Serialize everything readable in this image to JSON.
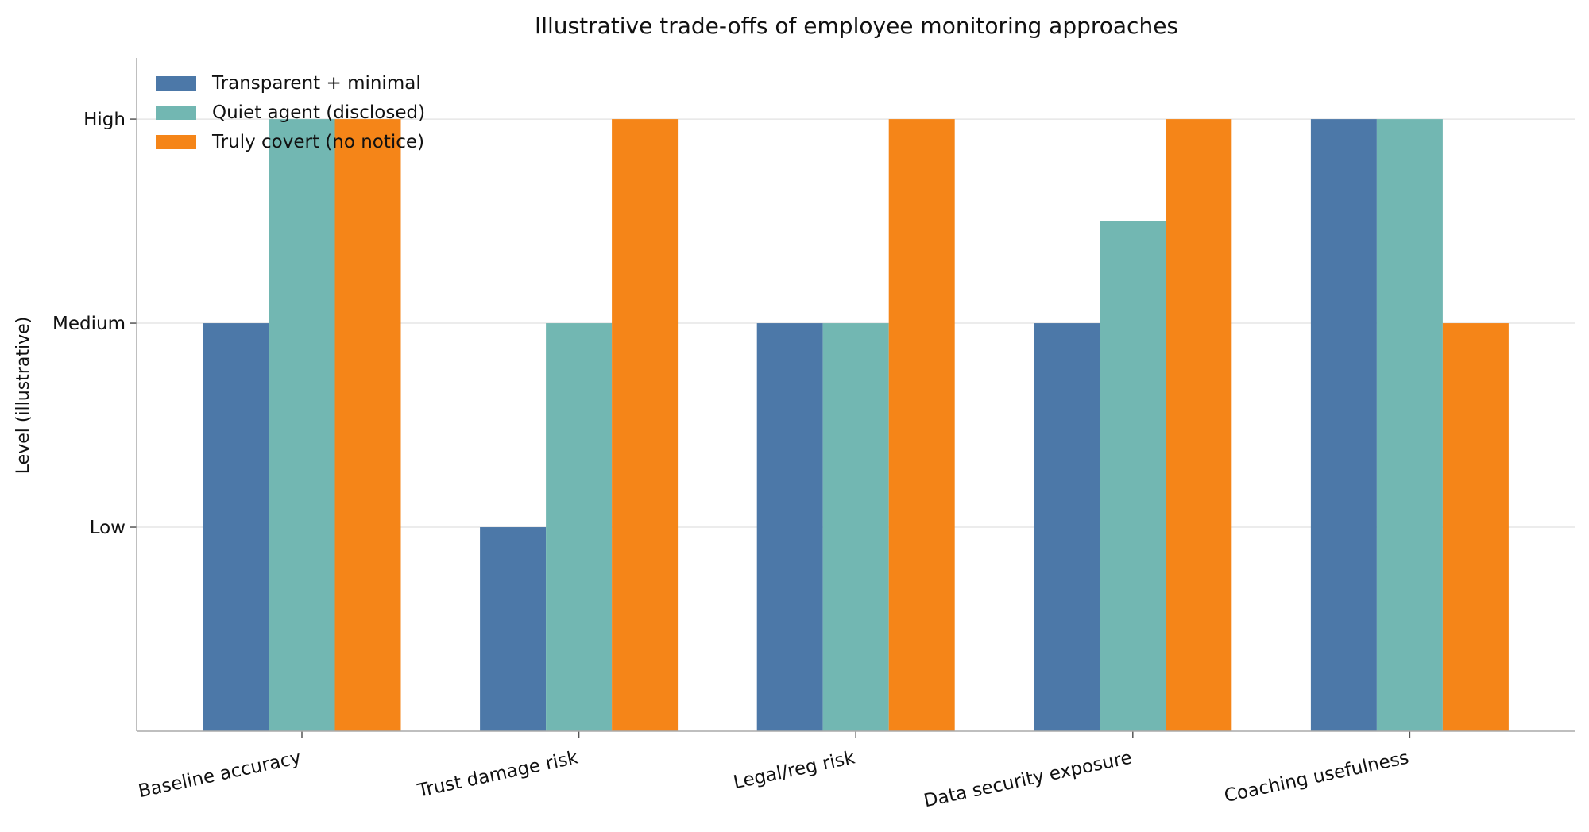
{
  "chart_data": {
    "type": "bar",
    "title": "Illustrative trade-offs of employee monitoring approaches",
    "xlabel": "",
    "ylabel": "Level (illustrative)",
    "categories": [
      "Baseline accuracy",
      "Trust damage risk",
      "Legal/reg risk",
      "Data security exposure",
      "Coaching usefulness"
    ],
    "series": [
      {
        "name": "Transparent + minimal",
        "color": "#4c78a8",
        "values": [
          2,
          1,
          2,
          2,
          3
        ]
      },
      {
        "name": "Quiet agent (disclosed)",
        "color": "#72b7b2",
        "values": [
          3,
          2,
          2,
          2.5,
          3
        ]
      },
      {
        "name": "Truly covert (no notice)",
        "color": "#f58518",
        "values": [
          3,
          3,
          3,
          3,
          2
        ]
      }
    ],
    "yticks": [
      {
        "value": 1,
        "label": "Low"
      },
      {
        "value": 2,
        "label": "Medium"
      },
      {
        "value": 3,
        "label": "High"
      }
    ],
    "ylim": [
      0,
      3.3
    ],
    "grid": "horizontal",
    "legend": "top-left"
  }
}
